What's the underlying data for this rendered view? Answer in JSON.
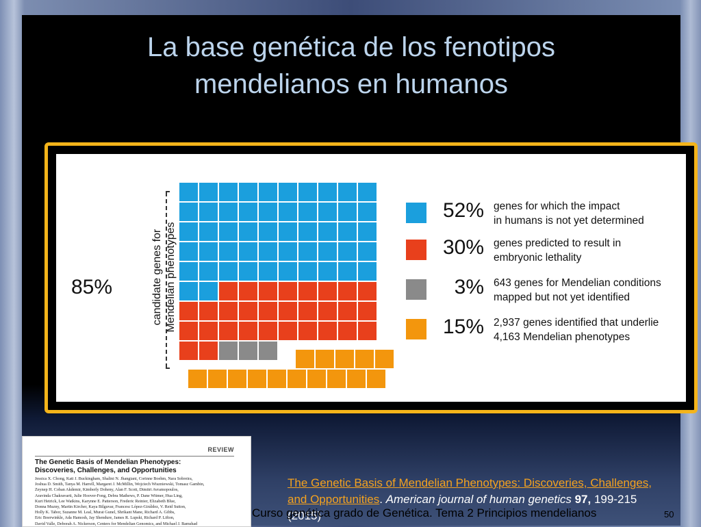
{
  "slide": {
    "title_line1": "La base genética de los fenotipos",
    "title_line2": "mendelianos en humanos"
  },
  "figure": {
    "bracket_label_line1": "candidate genes for",
    "bracket_label_line2": "Mendelian phenotypes",
    "bracket_percent": "85%",
    "legend": [
      {
        "color": "#1b9fdd",
        "percent": "52%",
        "line1": "genes for which the impact",
        "line2": "in humans is not yet determined"
      },
      {
        "color": "#e8401c",
        "percent": "30%",
        "line1": "genes predicted to result in",
        "line2": "embryonic lethality"
      },
      {
        "color": "#8a8a8a",
        "percent": "3%",
        "line1": "643 genes for Mendelian conditions",
        "line2": "mapped but not yet identified"
      },
      {
        "color": "#f3960d",
        "percent": "15%",
        "line1": "2,937 genes identified that underlie",
        "line2": "4,163 Mendelian phenotypes"
      }
    ]
  },
  "reference_thumbnail": {
    "section_label": "REVIEW",
    "title_line1": "The Genetic Basis of Mendelian Phenotypes:",
    "title_line2": "Discoveries, Challenges, and Opportunities",
    "authors_line1": "Jessica X. Chong, Kati J. Buckingham, Shalini N. Jhangiani, Corinne Boehm, Nara Sobreira,",
    "authors_line2": "Joshua D. Smith, Tanya M. Harrell, Margaret J. McMillin, Wojciech Wiszniewski, Tomasz Gambin,",
    "authors_line3": "Zeynep H. Coban Akdemir, Kimberly Doheny, Alan F. Scott, Dimitri Avramopoulos,",
    "authors_line4": "Aravinda Chakravarti, Julie Hoover-Fong, Debra Mathews, P. Dane Witmer, Hua Ling,",
    "authors_line5": "Kurt Hetrick, Lee Watkins, Karynne E. Patterson, Frederic Reinier, Elizabeth Blue,",
    "authors_line6": "Donna Muzny, Martin Kircher, Kaya Bilguvar, Francesc López-Giráldez, V. Reid Sutton,",
    "authors_line7": "Holly K. Tabor, Suzanne M. Leal, Murat Gunel, Shrikant Mane, Richard A. Gibbs,",
    "authors_line8": "Eric Boerwinkle, Ada Hamosh, Jay Shendure, James R. Lupski, Richard P. Lifton,",
    "authors_line9": "David Valle, Deborah A. Nickerson, Centers for Mendelian Genomics, and Michael J. Bamshad"
  },
  "citation": {
    "link_text": "The Genetic Basis of Mendelian Phenotypes: Discoveries, Challenges, and Opportunities",
    "journal": "American journal of human genetics",
    "volume": "97,",
    "pages_year": "199-215 (2015)"
  },
  "footer": {
    "course_text": "Curso genética grado de Genética. Tema 2 Principios mendelianos",
    "page_number": "50"
  }
}
